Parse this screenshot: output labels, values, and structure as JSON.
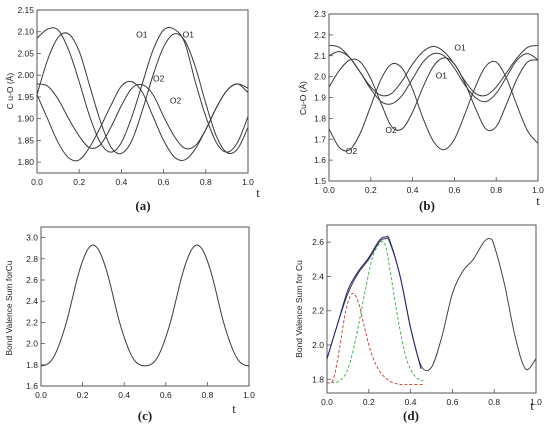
{
  "chart_data": [
    {
      "type": "line",
      "panel_label": "(a)",
      "ylabel": "C u-O (Å)",
      "xlabel": "t",
      "xlim": [
        0.0,
        1.0
      ],
      "ylim": [
        1.775,
        2.15
      ],
      "xticks": [
        "0.0",
        "0.2",
        "0.4",
        "0.6",
        "0.8",
        "1.0"
      ],
      "yticks": [
        "1.80",
        "1.85",
        "1.90",
        "1.95",
        "2.00",
        "2.05",
        "2.10",
        "2.15"
      ],
      "annotations": [
        {
          "text": "O1",
          "x": 0.47,
          "y": 2.087
        },
        {
          "text": "O1",
          "x": 0.69,
          "y": 2.087
        },
        {
          "text": "O2",
          "x": 0.55,
          "y": 1.985
        },
        {
          "text": "O2",
          "x": 0.63,
          "y": 1.935
        }
      ],
      "series": [
        {
          "x": [
            0,
            0.05,
            0.1,
            0.15,
            0.2,
            0.25,
            0.3,
            0.35,
            0.4,
            0.45,
            0.5,
            0.55,
            0.6,
            0.65,
            0.7,
            0.75,
            0.8,
            0.85,
            0.9,
            0.95,
            1.0
          ],
          "values": [
            2.085,
            2.106,
            2.104,
            2.058,
            1.985,
            1.905,
            1.845,
            1.823,
            1.845,
            1.905,
            1.982,
            2.058,
            2.104,
            2.106,
            2.075,
            1.985,
            1.905,
            1.845,
            1.823,
            1.845,
            1.905
          ]
        },
        {
          "x": [
            0,
            0.05,
            0.1,
            0.15,
            0.2,
            0.25,
            0.3,
            0.35,
            0.4,
            0.45,
            0.5,
            0.55,
            0.6,
            0.65,
            0.7,
            0.75,
            0.8,
            0.85,
            0.9,
            0.95,
            1.0
          ],
          "values": [
            1.955,
            2.035,
            2.087,
            2.095,
            2.055,
            1.975,
            1.895,
            1.835,
            1.82,
            1.85,
            1.92,
            2.0,
            2.065,
            2.095,
            2.08,
            2.02,
            1.935,
            1.86,
            1.822,
            1.83,
            1.88
          ]
        },
        {
          "x": [
            0,
            0.05,
            0.1,
            0.15,
            0.2,
            0.25,
            0.3,
            0.35,
            0.4,
            0.45,
            0.5,
            0.55,
            0.6,
            0.65,
            0.7,
            0.75,
            0.8,
            0.85,
            0.9,
            0.95,
            1.0
          ],
          "values": [
            1.98,
            1.975,
            1.945,
            1.9,
            1.86,
            1.833,
            1.84,
            1.88,
            1.93,
            1.97,
            1.978,
            1.955,
            1.905,
            1.86,
            1.832,
            1.838,
            1.875,
            1.925,
            1.965,
            1.98,
            1.97
          ]
        },
        {
          "x": [
            0,
            0.05,
            0.1,
            0.15,
            0.2,
            0.25,
            0.3,
            0.35,
            0.4,
            0.45,
            0.5,
            0.55,
            0.6,
            0.65,
            0.7,
            0.75,
            0.8,
            0.85,
            0.9,
            0.95,
            1.0
          ],
          "values": [
            1.955,
            1.9,
            1.845,
            1.81,
            1.805,
            1.835,
            1.88,
            1.93,
            1.975,
            1.985,
            1.96,
            1.905,
            1.85,
            1.812,
            1.805,
            1.83,
            1.875,
            1.925,
            1.965,
            1.98,
            1.96
          ]
        }
      ]
    },
    {
      "type": "line",
      "panel_label": "(b)",
      "ylabel": "Cu-O (Å)",
      "xlabel": "t",
      "xlim": [
        0.0,
        1.0
      ],
      "ylim": [
        1.5,
        2.3
      ],
      "xticks": [
        "0.0",
        "0.2",
        "0.4",
        "0.6",
        "0.8",
        "1.0"
      ],
      "yticks": [
        "1.5",
        "1.6",
        "1.7",
        "1.8",
        "1.9",
        "2.0",
        "2.1",
        "2.2",
        "2.3"
      ],
      "annotations": [
        {
          "text": "O1",
          "x": 0.6,
          "y": 2.125
        },
        {
          "text": "O1",
          "x": 0.51,
          "y": 1.99
        },
        {
          "text": "O2",
          "x": 0.27,
          "y": 1.73
        },
        {
          "text": "O2",
          "x": 0.08,
          "y": 1.63
        }
      ],
      "series": [
        {
          "x": [
            0,
            0.05,
            0.1,
            0.15,
            0.2,
            0.25,
            0.3,
            0.35,
            0.4,
            0.45,
            0.5,
            0.55,
            0.6,
            0.65,
            0.7,
            0.75,
            0.8,
            0.85,
            0.9,
            0.95,
            1.0
          ],
          "values": [
            2.15,
            2.14,
            2.09,
            2.02,
            1.95,
            1.91,
            1.92,
            1.98,
            2.06,
            2.12,
            2.145,
            2.12,
            2.06,
            1.98,
            1.92,
            1.91,
            1.95,
            2.02,
            2.09,
            2.14,
            2.15
          ]
        },
        {
          "x": [
            0,
            0.05,
            0.1,
            0.15,
            0.2,
            0.25,
            0.3,
            0.35,
            0.4,
            0.45,
            0.5,
            0.55,
            0.6,
            0.65,
            0.7,
            0.75,
            0.8,
            0.85,
            0.9,
            0.95,
            1.0
          ],
          "values": [
            2.1,
            2.12,
            2.09,
            2.02,
            1.94,
            1.88,
            1.87,
            1.91,
            1.99,
            2.07,
            2.11,
            2.1,
            2.04,
            1.96,
            1.9,
            1.88,
            1.92,
            2.0,
            2.08,
            2.11,
            2.08
          ]
        },
        {
          "x": [
            0,
            0.05,
            0.1,
            0.15,
            0.2,
            0.25,
            0.3,
            0.35,
            0.4,
            0.45,
            0.5,
            0.55,
            0.6,
            0.65,
            0.7,
            0.75,
            0.8,
            0.85,
            0.9,
            0.95,
            1.0
          ],
          "values": [
            1.95,
            2.03,
            2.08,
            2.07,
            1.99,
            1.87,
            1.76,
            1.75,
            1.83,
            1.95,
            2.05,
            2.09,
            2.06,
            1.97,
            1.85,
            1.75,
            1.76,
            1.87,
            1.99,
            2.07,
            2.08
          ]
        },
        {
          "x": [
            0,
            0.05,
            0.1,
            0.15,
            0.2,
            0.25,
            0.3,
            0.35,
            0.4,
            0.45,
            0.5,
            0.55,
            0.6,
            0.65,
            0.7,
            0.75,
            0.8,
            0.85,
            0.9,
            0.95,
            1.0
          ],
          "values": [
            1.75,
            1.66,
            1.65,
            1.73,
            1.86,
            1.99,
            2.06,
            2.04,
            1.94,
            1.8,
            1.69,
            1.65,
            1.7,
            1.82,
            1.95,
            2.05,
            2.07,
            1.99,
            1.86,
            1.74,
            1.68
          ]
        }
      ]
    },
    {
      "type": "line",
      "panel_label": "(c)",
      "ylabel": "Bond Valence Sum forCu",
      "xlabel": "t",
      "xlim": [
        0.0,
        1.0
      ],
      "ylim": [
        1.6,
        3.1
      ],
      "xticks": [
        "0.0",
        "0.2",
        "0.4",
        "0.6",
        "0.8",
        "1.0"
      ],
      "yticks": [
        "1.6",
        "1.8",
        "2.0",
        "2.2",
        "2.4",
        "2.6",
        "2.8",
        "3.0"
      ],
      "series": [
        {
          "x": [
            0,
            0.025,
            0.05,
            0.075,
            0.1,
            0.125,
            0.15,
            0.175,
            0.2,
            0.225,
            0.25,
            0.275,
            0.3,
            0.325,
            0.35,
            0.375,
            0.4,
            0.425,
            0.45,
            0.475,
            0.5,
            0.525,
            0.55,
            0.575,
            0.6,
            0.625,
            0.65,
            0.675,
            0.7,
            0.725,
            0.75,
            0.775,
            0.8,
            0.825,
            0.85,
            0.875,
            0.9,
            0.925,
            0.95,
            0.975,
            1.0
          ],
          "values": [
            1.79,
            1.8,
            1.84,
            1.93,
            2.06,
            2.22,
            2.42,
            2.62,
            2.78,
            2.89,
            2.93,
            2.89,
            2.78,
            2.62,
            2.42,
            2.22,
            2.06,
            1.93,
            1.84,
            1.8,
            1.79,
            1.8,
            1.84,
            1.93,
            2.06,
            2.22,
            2.42,
            2.62,
            2.78,
            2.89,
            2.93,
            2.89,
            2.78,
            2.62,
            2.42,
            2.22,
            2.06,
            1.93,
            1.84,
            1.8,
            1.79
          ]
        }
      ]
    },
    {
      "type": "line",
      "panel_label": "(d)",
      "ylabel": "Bond Valence Sum for Cu",
      "xlabel": "t",
      "xlim": [
        0.0,
        1.0
      ],
      "ylim": [
        1.72,
        2.7
      ],
      "xticks": [
        "0.0",
        "0.2",
        "0.4",
        "0.6",
        "0.8",
        "1.0"
      ],
      "yticks": [
        "1.8",
        "2.0",
        "2.2",
        "2.4",
        "2.6"
      ],
      "colors": {
        "data": "#444444",
        "fit": "#22227a",
        "component1": "#cc3322",
        "component2": "#33aa44"
      },
      "series": [
        {
          "style": "solid",
          "color": "#444444",
          "x": [
            0,
            0.05,
            0.1,
            0.15,
            0.2,
            0.25,
            0.28,
            0.3,
            0.35,
            0.4,
            0.45,
            0.5,
            0.55,
            0.6,
            0.65,
            0.7,
            0.75,
            0.78,
            0.8,
            0.85,
            0.9,
            0.95,
            1.0
          ],
          "values": [
            1.92,
            2.12,
            2.3,
            2.42,
            2.5,
            2.6,
            2.62,
            2.6,
            2.4,
            2.1,
            1.88,
            1.87,
            2.05,
            2.3,
            2.43,
            2.5,
            2.6,
            2.62,
            2.58,
            2.35,
            2.05,
            1.86,
            1.92
          ]
        },
        {
          "style": "solid",
          "color": "#22227a",
          "x": [
            0,
            0.05,
            0.1,
            0.15,
            0.2,
            0.25,
            0.28,
            0.3,
            0.35,
            0.4,
            0.45
          ],
          "values": [
            1.92,
            2.12,
            2.32,
            2.43,
            2.51,
            2.61,
            2.63,
            2.61,
            2.4,
            2.1,
            1.86
          ]
        },
        {
          "style": "dashed",
          "color": "#cc3322",
          "x": [
            0,
            0.03,
            0.06,
            0.09,
            0.12,
            0.15,
            0.18,
            0.21,
            0.25,
            0.3,
            0.35,
            0.4,
            0.46
          ],
          "values": [
            1.78,
            1.8,
            1.98,
            2.2,
            2.3,
            2.25,
            2.1,
            1.96,
            1.85,
            1.79,
            1.77,
            1.77,
            1.77
          ]
        },
        {
          "style": "dashed",
          "color": "#33aa44",
          "x": [
            0.02,
            0.06,
            0.1,
            0.14,
            0.18,
            0.22,
            0.26,
            0.28,
            0.3,
            0.34,
            0.38,
            0.42,
            0.46
          ],
          "values": [
            1.78,
            1.79,
            1.86,
            2.05,
            2.3,
            2.52,
            2.6,
            2.58,
            2.45,
            2.15,
            1.92,
            1.82,
            1.79
          ]
        }
      ]
    }
  ]
}
